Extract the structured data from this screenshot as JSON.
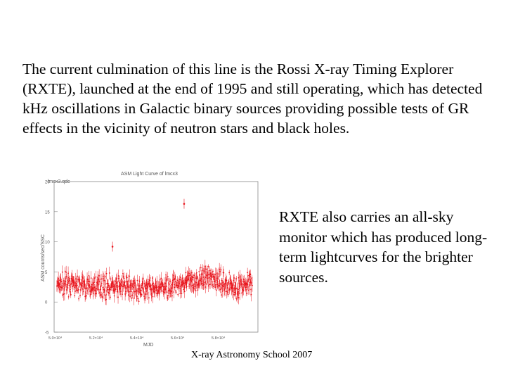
{
  "main_text": "The current culmination of this line is the Rossi X-ray Timing Explorer (RXTE), launched at the end of 1995 and still operating, which has detected kHz oscillations in Galactic binary sources providing possible tests of GR effects in the vicinity of neutron stars and black holes.",
  "side_text": "RXTE also carries an all-sky monitor which has produced long-term lightcurves for the brighter sources.",
  "footer": "X-ray Astronomy School 2007",
  "colors": {
    "data": "#e8141c",
    "axis": "#888888"
  },
  "chart_data": {
    "type": "scatter",
    "title": "ASM Light Curve of lmcx3",
    "subtitle": "lmcx3.qdc",
    "xlabel": "MJD",
    "ylabel": "ASM counts/sec/SSC",
    "xlim": [
      50000,
      53700
    ],
    "ylim": [
      -5,
      20
    ],
    "yticks": [
      "20",
      "15",
      "10",
      "5",
      "0",
      "-5"
    ],
    "xticks": [
      "5.0×10⁴",
      "5.2×10⁴",
      "5.4×10⁴",
      "5.6×10⁴",
      "5.8×10⁴"
    ],
    "outliers": [
      {
        "x": 52360,
        "y": 16.3
      },
      {
        "x": 51060,
        "y": 9.2
      },
      {
        "x": 53560,
        "y": 4.6
      }
    ],
    "profile": [
      {
        "x": 50050,
        "y": 2.8
      },
      {
        "x": 50300,
        "y": 3.0
      },
      {
        "x": 50550,
        "y": 2.4
      },
      {
        "x": 50800,
        "y": 2.9
      },
      {
        "x": 51050,
        "y": 2.5
      },
      {
        "x": 51300,
        "y": 2.7
      },
      {
        "x": 51550,
        "y": 2.2
      },
      {
        "x": 51800,
        "y": 2.0
      },
      {
        "x": 52050,
        "y": 2.6
      },
      {
        "x": 52300,
        "y": 3.1
      },
      {
        "x": 52550,
        "y": 3.4
      },
      {
        "x": 52800,
        "y": 4.4
      },
      {
        "x": 53050,
        "y": 3.2
      },
      {
        "x": 53300,
        "y": 2.6
      },
      {
        "x": 53600,
        "y": 2.9
      }
    ]
  }
}
